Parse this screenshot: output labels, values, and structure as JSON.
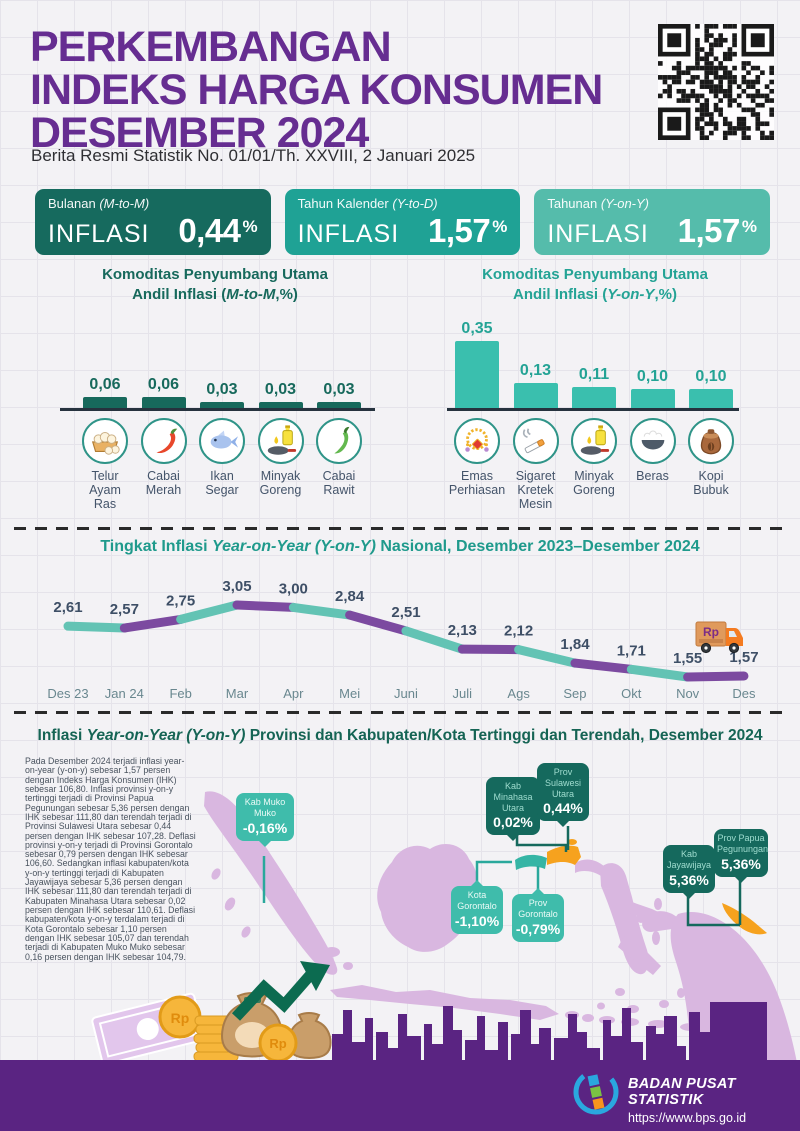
{
  "header": {
    "title_line1": "PERKEMBANGAN",
    "title_line2": "INDEKS HARGA KONSUMEN",
    "title_line3": "DESEMBER 2024",
    "subtitle": "Berita Resmi Statistik No. 01/01/Th. XXVIII, 2 Januari 2025"
  },
  "stats": [
    {
      "period": "Bulanan ",
      "period_detail": "(M-to-M)",
      "label": "INFLASI",
      "value": "0,44",
      "unit": "%"
    },
    {
      "period": "Tahun Kalender ",
      "period_detail": "(Y-to-D)",
      "label": "INFLASI",
      "value": "1,57",
      "unit": "%"
    },
    {
      "period": "Tahunan ",
      "period_detail": "(Y-on-Y)",
      "label": "INFLASI",
      "value": "1,57",
      "unit": "%"
    }
  ],
  "chart_data": [
    {
      "id": "andil-inflasi-mtm",
      "type": "bar",
      "title": "Komoditas Penyumbang Utama Andil Inflasi (M-to-M,%)",
      "title_parts": {
        "line1": "Komoditas Penyumbang Utama",
        "line2_pre": "Andil Inflasi (",
        "line2_italic": "M-to-M",
        "line2_post": ",%)"
      },
      "categories": [
        "Telur Ayam Ras",
        "Cabai Merah",
        "Ikan Segar",
        "Minyak Goreng",
        "Cabai Rawit"
      ],
      "values": [
        0.06,
        0.06,
        0.03,
        0.03,
        0.03
      ],
      "labels": [
        "0,06",
        "0,06",
        "0,03",
        "0,03",
        "0,03"
      ],
      "icons": [
        "eggs-icon",
        "red-chili-icon",
        "fish-icon",
        "cooking-oil-icon",
        "green-chili-icon"
      ],
      "bar_color": "#17695c",
      "ylim": [
        0,
        0.4
      ],
      "grid": false
    },
    {
      "id": "andil-inflasi-yoy",
      "type": "bar",
      "title": "Komoditas Penyumbang Utama Andil Inflasi (Y-on-Y,%)",
      "title_parts": {
        "line1": "Komoditas Penyumbang Utama",
        "line2_pre": "Andil Inflasi (",
        "line2_italic": "Y-on-Y",
        "line2_post": ",%)"
      },
      "categories": [
        "Emas Perhiasan",
        "Sigaret Kretek Mesin",
        "Minyak Goreng",
        "Beras",
        "Kopi Bubuk"
      ],
      "values": [
        0.35,
        0.13,
        0.11,
        0.1,
        0.1
      ],
      "labels": [
        "0,35",
        "0,13",
        "0,11",
        "0,10",
        "0,10"
      ],
      "icons": [
        "gold-jewelry-icon",
        "cigarette-icon",
        "cooking-oil-icon",
        "rice-bowl-icon",
        "coffee-sack-icon"
      ],
      "bar_color": "#3abfae",
      "ylim": [
        0,
        0.4
      ],
      "grid": false
    },
    {
      "id": "inflasi-yoy-nasional",
      "type": "line",
      "title": "Tingkat Inflasi Year-on-Year (Y-on-Y) Nasional, Desember 2023–Desember 2024",
      "title_parts": {
        "pre": "Tingkat Inflasi ",
        "italic": "Year-on-Year (Y-on-Y)",
        "post": " Nasional, Desember 2023–Desember 2024"
      },
      "x": [
        "Des 23",
        "Jan 24",
        "Feb",
        "Mar",
        "Apr",
        "Mei",
        "Juni",
        "Juli",
        "Ags",
        "Sep",
        "Okt",
        "Nov",
        "Des"
      ],
      "values": [
        2.61,
        2.57,
        2.75,
        3.05,
        3.0,
        2.84,
        2.51,
        2.13,
        2.12,
        1.84,
        1.71,
        1.55,
        1.57
      ],
      "labels": [
        "2,61",
        "2,57",
        "2,75",
        "3,05",
        "3,00",
        "2,84",
        "2,51",
        "2,13",
        "2,12",
        "1,84",
        "1,71",
        "1,55",
        "1,57"
      ],
      "ylim": [
        1.3,
        3.4
      ],
      "grid": false,
      "legend": "none",
      "segment_colors": [
        "#63c3b4",
        "#7c4aa0"
      ],
      "annotation": "Rp"
    }
  ],
  "map_section": {
    "title_parts": {
      "pre": "Inflasi ",
      "italic": "Year-on-Year (Y-on-Y)",
      "post": " Provinsi dan Kabupaten/Kota Tertinggi dan Terendah, Desember 2024"
    },
    "paragraph": "Pada Desember 2024 terjadi inflasi year-on-year (y-on-y) sebesar 1,57 persen dengan Indeks Harga Konsumen (IHK) sebesar 106,80. Inflasi provinsi y-on-y tertinggi terjadi di Provinsi Papua Pegunungan sebesar 5,36 persen dengan IHK sebesar 111,80 dan terendah terjadi di Provinsi Sulawesi Utara sebesar 0,44 persen dengan IHK sebesar 107,28. Deflasi provinsi y-on-y terjadi di Provinsi Gorontalo sebesar 0,79 persen dengan IHK sebesar 106,60. Sedangkan inflasi kabupaten/kota y-on-y tertinggi terjadi di Kabupaten Jayawijaya sebesar 5,36 persen dengan IHK sebesar 111,80 dan terendah terjadi di Kabupaten Minahasa Utara sebesar 0,02 persen dengan IHK sebesar 110,61. Deflasi kabupaten/kota y-on-y terdalam terjadi di Kota Gorontalo sebesar 1,10 persen dengan IHK sebesar 105,07 dan terendah terjadi di Kabupaten Muko Muko sebesar 0,16 persen dengan IHK sebesar 104,79.",
    "callouts": [
      {
        "name": "Kab Muko Muko",
        "value": "-0,16%"
      },
      {
        "name": "Kab Minahasa Utara",
        "value": "0,02%"
      },
      {
        "name": "Prov Sulawesi Utara",
        "value": "0,44%"
      },
      {
        "name": "Kota Gorontalo",
        "value": "-1,10%"
      },
      {
        "name": "Prov Gorontalo",
        "value": "-0,79%"
      },
      {
        "name": "Kab Jayawijaya",
        "value": "5,36%"
      },
      {
        "name": "Prov Papua Pegunungan",
        "value": "5,36%"
      }
    ]
  },
  "illustration": {
    "coin_label": "Rp"
  },
  "footer": {
    "org": "BADAN PUSAT STATISTIK",
    "url": "https://www.bps.go.id"
  },
  "colors": {
    "accent_purple": "#662d91",
    "teal_dark": "#15695d",
    "teal": "#21a295",
    "teal_light": "#3fbcab",
    "orange": "#f6a21e",
    "map_purple": "#d9b7e0",
    "footer_purple": "#5a2482"
  }
}
